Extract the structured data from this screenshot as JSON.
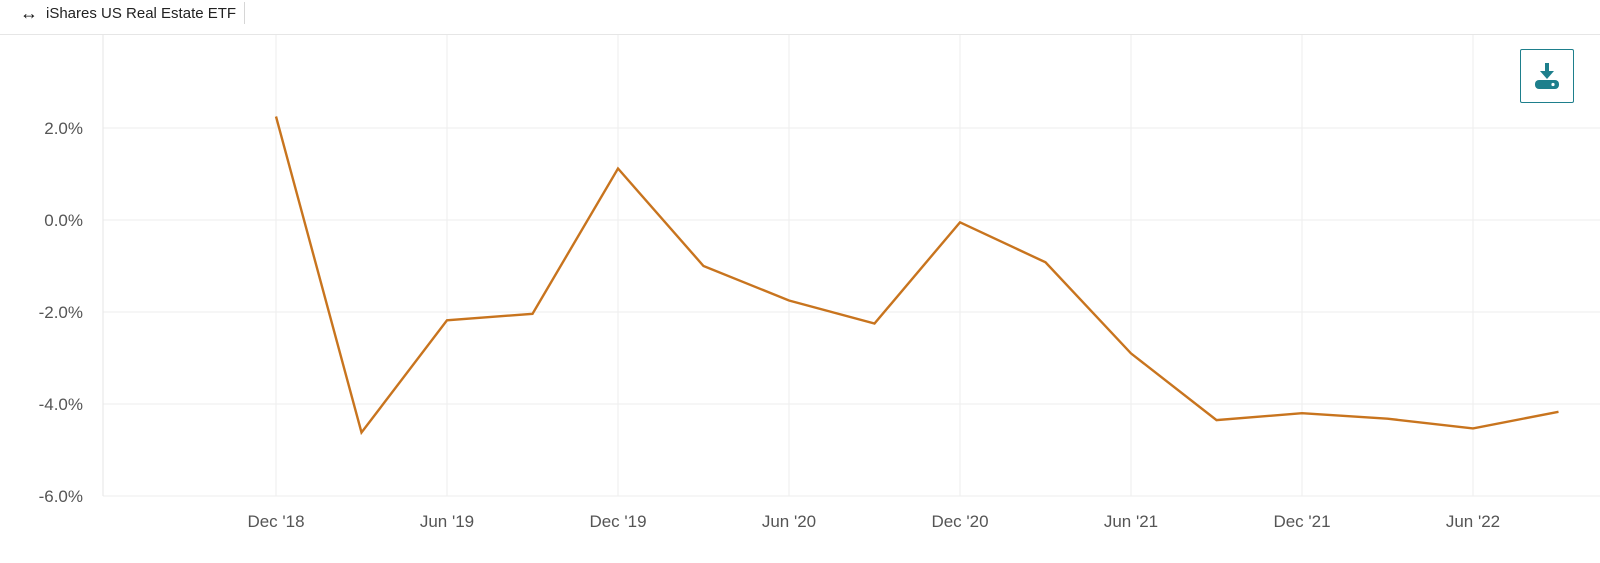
{
  "legend": {
    "arrow_icon": "↔",
    "series_label": "iShares US Real Estate ETF"
  },
  "toolbar": {
    "download_icon": "download-icon",
    "accent_color": "#1e7f8c"
  },
  "chart_data": {
    "type": "line",
    "title": "",
    "xlabel": "",
    "ylabel": "",
    "ylim": [
      -6.0,
      4.0
    ],
    "x_ticks": [
      "Dec '18",
      "Jun '19",
      "Dec '19",
      "Jun '20",
      "Dec '20",
      "Jun '21",
      "Dec '21",
      "Jun '22"
    ],
    "y_ticks": [
      "2.0%",
      "0.0%",
      "-2.0%",
      "-4.0%",
      "-6.0%"
    ],
    "y_tick_values": [
      2.0,
      0.0,
      -2.0,
      -4.0,
      -6.0
    ],
    "grid": true,
    "series": [
      {
        "name": "iShares US Real Estate ETF",
        "color": "#c8741e",
        "x": [
          "2018-12",
          "2019-03",
          "2019-06",
          "2019-09",
          "2019-12",
          "2020-03",
          "2020-06",
          "2020-09",
          "2020-12",
          "2021-03",
          "2021-06",
          "2021-09",
          "2021-12",
          "2022-03",
          "2022-06",
          "2022-09"
        ],
        "values": [
          2.25,
          -4.62,
          -2.18,
          -2.04,
          1.12,
          -1.0,
          -1.75,
          -2.25,
          -0.05,
          -0.92,
          -2.9,
          -4.35,
          -4.2,
          -4.32,
          -4.53,
          -4.17
        ]
      }
    ]
  }
}
